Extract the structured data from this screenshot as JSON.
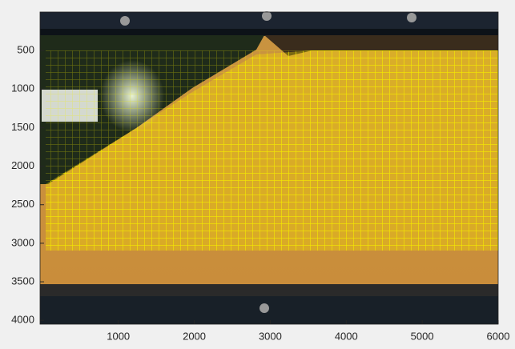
{
  "chart_data": {
    "type": "image",
    "xlim": [
      -30,
      6000
    ],
    "ylim": [
      0,
      4050
    ],
    "xticks": [
      1000,
      2000,
      3000,
      4000,
      5000,
      6000
    ],
    "yticks": [
      500,
      1000,
      1500,
      2000,
      2500,
      3000,
      3500,
      4000
    ],
    "y_reversed": true
  }
}
